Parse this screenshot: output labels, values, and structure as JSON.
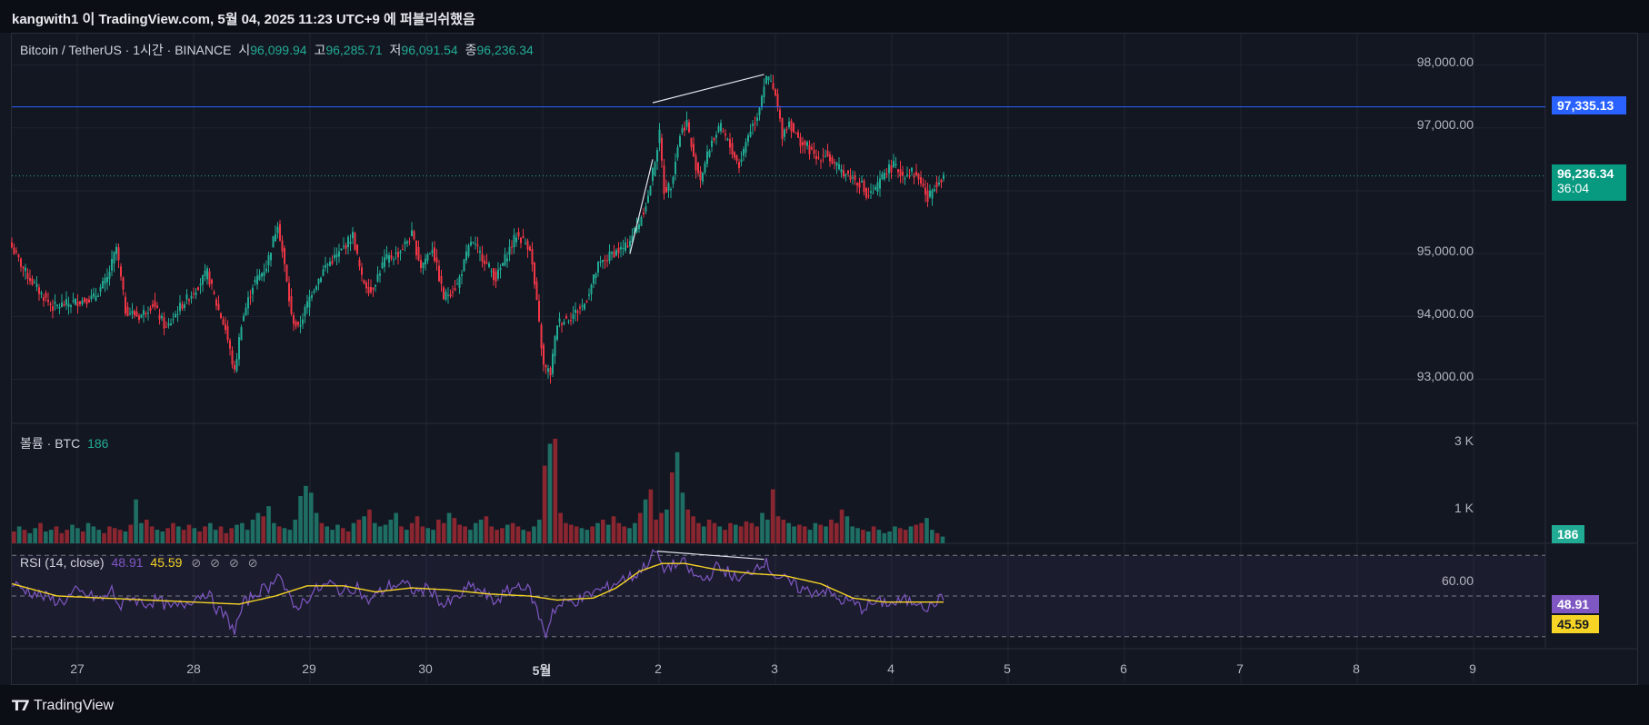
{
  "attribution": "kangwith1 이 TradingView.com, 5월 04, 2025 11:23 UTC+9 에 퍼블리쉬했음",
  "footer_brand": "TradingView",
  "symbol_legend": {
    "title": "Bitcoin / TetherUS · 1시간 · BINANCE",
    "open_key": "시",
    "open": "96,099.94",
    "high_key": "고",
    "high": "96,285.71",
    "low_key": "저",
    "low": "96,091.54",
    "close_key": "종",
    "close": "96,236.34"
  },
  "volume_legend": {
    "title": "볼륨 · BTC",
    "value": "186"
  },
  "rsi_legend": {
    "title": "RSI (14, close)",
    "value": "48.91",
    "ma": "45.59",
    "icons": [
      "⊘",
      "⊘",
      "⊘",
      "⊘"
    ]
  },
  "price_axis": [
    "98,000.00",
    "97,000.00",
    "95,000.00",
    "94,000.00",
    "93,000.00"
  ],
  "volume_axis": [
    "3 K",
    "1 K"
  ],
  "rsi_axis": [
    "60.00"
  ],
  "tags": {
    "line_price": "97,335.13",
    "last_price": "96,236.34",
    "countdown": "36:04",
    "volume": "186",
    "rsi": "48.91",
    "rsi_ma": "45.59"
  },
  "colors": {
    "up": "#22ab94",
    "down": "#f23645",
    "line": "#2962ff",
    "rsi": "#7e57c2",
    "rsi_ma": "#f5d425",
    "background": "#131722"
  },
  "chart_data": {
    "type": "candlestick",
    "symbol": "Bitcoin / TetherUS",
    "interval": "1시간",
    "exchange": "BINANCE",
    "x_ticks": [
      "27",
      "28",
      "29",
      "30",
      "5월",
      "2",
      "3",
      "4",
      "5",
      "6",
      "7",
      "8",
      "9"
    ],
    "price_ylim": [
      92300,
      98500
    ],
    "horizontal_line": 97335.13,
    "last_close": 96236.34,
    "price_path": [
      [
        0,
        95100
      ],
      [
        6,
        94700
      ],
      [
        12,
        94400
      ],
      [
        18,
        94150
      ],
      [
        24,
        94200
      ],
      [
        30,
        94250
      ],
      [
        36,
        94300
      ],
      [
        42,
        94600
      ],
      [
        46,
        95100
      ],
      [
        50,
        94100
      ],
      [
        56,
        94000
      ],
      [
        62,
        94200
      ],
      [
        68,
        93800
      ],
      [
        74,
        94150
      ],
      [
        80,
        94400
      ],
      [
        86,
        94700
      ],
      [
        90,
        94200
      ],
      [
        94,
        93800
      ],
      [
        98,
        93100
      ],
      [
        101,
        93900
      ],
      [
        106,
        94500
      ],
      [
        112,
        94800
      ],
      [
        117,
        95500
      ],
      [
        120,
        94800
      ],
      [
        123,
        94000
      ],
      [
        126,
        93800
      ],
      [
        132,
        94400
      ],
      [
        138,
        94800
      ],
      [
        144,
        95000
      ],
      [
        150,
        95300
      ],
      [
        154,
        94600
      ],
      [
        158,
        94400
      ],
      [
        164,
        94900
      ],
      [
        170,
        95000
      ],
      [
        176,
        95300
      ],
      [
        180,
        94800
      ],
      [
        185,
        95100
      ],
      [
        190,
        94300
      ],
      [
        196,
        94500
      ],
      [
        202,
        95200
      ],
      [
        208,
        94900
      ],
      [
        213,
        94600
      ],
      [
        218,
        95000
      ],
      [
        222,
        95300
      ],
      [
        228,
        95100
      ],
      [
        231,
        94200
      ],
      [
        234,
        93200
      ],
      [
        237,
        93100
      ],
      [
        240,
        93900
      ],
      [
        246,
        94000
      ],
      [
        252,
        94200
      ],
      [
        258,
        94800
      ],
      [
        264,
        95000
      ],
      [
        270,
        95100
      ],
      [
        276,
        95500
      ],
      [
        280,
        95900
      ],
      [
        283,
        96500
      ],
      [
        285,
        96900
      ],
      [
        287,
        96000
      ],
      [
        290,
        96100
      ],
      [
        294,
        96900
      ],
      [
        297,
        97100
      ],
      [
        300,
        96500
      ],
      [
        303,
        96200
      ],
      [
        308,
        96800
      ],
      [
        312,
        97000
      ],
      [
        316,
        96700
      ],
      [
        320,
        96400
      ],
      [
        324,
        96900
      ],
      [
        328,
        97200
      ],
      [
        331,
        97700
      ],
      [
        333,
        97800
      ],
      [
        336,
        97500
      ],
      [
        339,
        96900
      ],
      [
        342,
        97100
      ],
      [
        346,
        96800
      ],
      [
        350,
        96700
      ],
      [
        354,
        96500
      ],
      [
        358,
        96600
      ],
      [
        362,
        96400
      ],
      [
        366,
        96300
      ],
      [
        370,
        96200
      ],
      [
        374,
        96100
      ],
      [
        376,
        95900
      ],
      [
        380,
        96000
      ],
      [
        384,
        96300
      ],
      [
        388,
        96400
      ],
      [
        392,
        96250
      ],
      [
        396,
        96300
      ],
      [
        400,
        96150
      ],
      [
        403,
        95850
      ],
      [
        406,
        96100
      ],
      [
        410,
        96236
      ]
    ],
    "volume_ylim": [
      0,
      3500
    ],
    "volume_values_k": [
      0.35,
      0.5,
      0.4,
      0.3,
      0.45,
      0.6,
      0.35,
      0.4,
      0.5,
      0.3,
      0.4,
      0.55,
      0.45,
      0.35,
      0.6,
      0.5,
      0.4,
      0.3,
      0.5,
      0.45,
      0.4,
      0.35,
      0.55,
      1.3,
      0.6,
      0.7,
      0.5,
      0.4,
      0.35,
      0.45,
      0.6,
      0.5,
      0.4,
      0.55,
      0.45,
      0.35,
      0.5,
      0.6,
      0.4,
      0.5,
      0.3,
      0.45,
      0.55,
      0.6,
      0.4,
      0.7,
      0.9,
      0.8,
      1.1,
      0.6,
      0.5,
      0.45,
      0.4,
      0.7,
      1.4,
      1.7,
      1.5,
      0.9,
      0.6,
      0.5,
      0.4,
      0.55,
      0.45,
      0.35,
      0.6,
      0.7,
      0.8,
      1.0,
      0.6,
      0.5,
      0.55,
      0.7,
      0.9,
      0.5,
      0.4,
      0.6,
      0.8,
      0.5,
      0.45,
      0.4,
      0.7,
      0.6,
      0.9,
      0.75,
      0.55,
      0.5,
      0.4,
      0.6,
      0.7,
      0.8,
      0.5,
      0.4,
      0.45,
      0.55,
      0.6,
      0.5,
      0.4,
      0.35,
      0.5,
      0.7,
      2.3,
      2.95,
      3.1,
      0.9,
      0.6,
      0.55,
      0.5,
      0.45,
      0.4,
      0.5,
      0.6,
      0.7,
      0.55,
      0.8,
      0.6,
      0.5,
      0.45,
      0.6,
      0.9,
      1.3,
      1.6,
      0.7,
      0.9,
      1.0,
      2.1,
      2.7,
      1.5,
      1.0,
      0.8,
      0.6,
      0.5,
      0.7,
      0.6,
      0.5,
      0.4,
      0.6,
      0.55,
      0.5,
      0.65,
      0.6,
      0.5,
      0.9,
      0.7,
      1.6,
      0.8,
      0.7,
      0.6,
      0.5,
      0.55,
      0.5,
      0.4,
      0.6,
      0.55,
      0.5,
      0.7,
      0.6,
      1.0,
      0.8,
      0.5,
      0.45,
      0.4,
      0.35,
      0.5,
      0.4,
      0.3,
      0.35,
      0.5,
      0.45,
      0.4,
      0.5,
      0.55,
      0.6,
      0.75,
      0.4,
      0.3,
      0.2
    ],
    "rsi_ylim": [
      25,
      75
    ],
    "rsi_bands": [
      70,
      50,
      30
    ],
    "rsi_path": [
      [
        0,
        56
      ],
      [
        8,
        52
      ],
      [
        16,
        49
      ],
      [
        22,
        47
      ],
      [
        28,
        52
      ],
      [
        34,
        50
      ],
      [
        40,
        48
      ],
      [
        44,
        53
      ],
      [
        48,
        44
      ],
      [
        52,
        50
      ],
      [
        58,
        46
      ],
      [
        64,
        48
      ],
      [
        70,
        44
      ],
      [
        76,
        46
      ],
      [
        80,
        49
      ],
      [
        86,
        52
      ],
      [
        90,
        44
      ],
      [
        94,
        40
      ],
      [
        98,
        33
      ],
      [
        102,
        46
      ],
      [
        108,
        52
      ],
      [
        114,
        55
      ],
      [
        117,
        63
      ],
      [
        120,
        54
      ],
      [
        124,
        44
      ],
      [
        128,
        47
      ],
      [
        134,
        53
      ],
      [
        140,
        56
      ],
      [
        146,
        52
      ],
      [
        152,
        55
      ],
      [
        156,
        47
      ],
      [
        160,
        50
      ],
      [
        166,
        55
      ],
      [
        172,
        56
      ],
      [
        178,
        52
      ],
      [
        184,
        54
      ],
      [
        190,
        45
      ],
      [
        196,
        49
      ],
      [
        202,
        55
      ],
      [
        208,
        51
      ],
      [
        212,
        47
      ],
      [
        218,
        52
      ],
      [
        224,
        56
      ],
      [
        228,
        52
      ],
      [
        232,
        40
      ],
      [
        235,
        31
      ],
      [
        238,
        43
      ],
      [
        244,
        47
      ],
      [
        250,
        48
      ],
      [
        256,
        52
      ],
      [
        262,
        54
      ],
      [
        268,
        58
      ],
      [
        274,
        60
      ],
      [
        278,
        64
      ],
      [
        282,
        70
      ],
      [
        284,
        72
      ],
      [
        286,
        63
      ],
      [
        290,
        65
      ],
      [
        296,
        66
      ],
      [
        300,
        60
      ],
      [
        305,
        58
      ],
      [
        310,
        64
      ],
      [
        315,
        62
      ],
      [
        320,
        57
      ],
      [
        326,
        63
      ],
      [
        330,
        67
      ],
      [
        332,
        66
      ],
      [
        336,
        60
      ],
      [
        340,
        58
      ],
      [
        346,
        54
      ],
      [
        352,
        52
      ],
      [
        358,
        53
      ],
      [
        364,
        48
      ],
      [
        370,
        47
      ],
      [
        374,
        44
      ],
      [
        378,
        46
      ],
      [
        384,
        47
      ],
      [
        388,
        46
      ],
      [
        392,
        48
      ],
      [
        396,
        47
      ],
      [
        400,
        48
      ],
      [
        403,
        43
      ],
      [
        406,
        47
      ],
      [
        410,
        49
      ]
    ],
    "rsi_ma_path": [
      [
        0,
        56
      ],
      [
        20,
        50
      ],
      [
        40,
        49
      ],
      [
        60,
        48
      ],
      [
        80,
        47
      ],
      [
        100,
        46
      ],
      [
        116,
        50
      ],
      [
        130,
        55
      ],
      [
        146,
        55
      ],
      [
        160,
        52
      ],
      [
        176,
        54
      ],
      [
        192,
        53
      ],
      [
        210,
        51
      ],
      [
        228,
        50
      ],
      [
        240,
        48
      ],
      [
        256,
        49
      ],
      [
        266,
        54
      ],
      [
        276,
        62
      ],
      [
        286,
        66
      ],
      [
        296,
        66
      ],
      [
        310,
        63
      ],
      [
        326,
        61
      ],
      [
        340,
        60
      ],
      [
        356,
        56
      ],
      [
        370,
        49
      ],
      [
        384,
        47
      ],
      [
        400,
        47
      ],
      [
        410,
        47
      ]
    ],
    "annotations": [
      {
        "type": "trendline",
        "pane": "price",
        "points": [
          [
            282,
            97400
          ],
          [
            331,
            97850
          ]
        ]
      },
      {
        "type": "trendline",
        "pane": "price",
        "points": [
          [
            272,
            95000
          ],
          [
            282,
            96500
          ]
        ]
      },
      {
        "type": "trendline",
        "pane": "rsi",
        "points": [
          [
            284,
            72
          ],
          [
            331,
            68
          ]
        ]
      }
    ]
  }
}
